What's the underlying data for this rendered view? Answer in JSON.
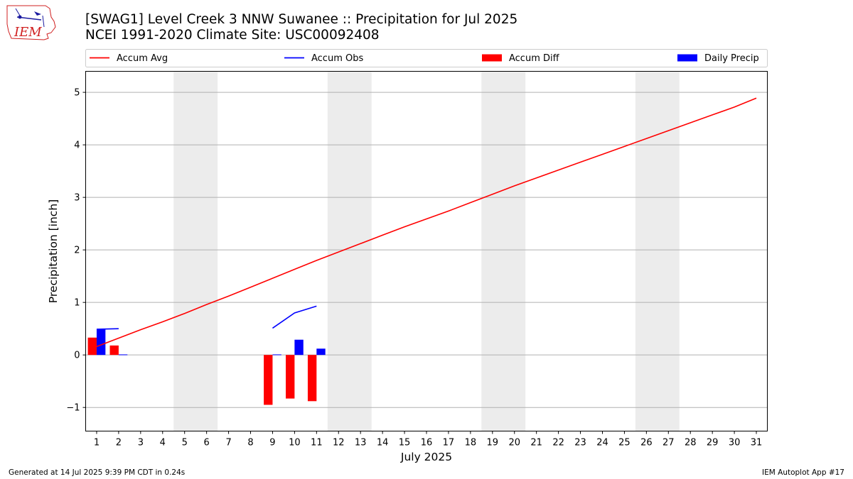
{
  "title_line1": "[SWAG1] Level Creek 3 NNW Suwanee :: Precipitation for Jul 2025",
  "title_line2": "NCEI 1991-2020 Climate Site: USC00092408",
  "footer_left": "Generated at 14 Jul 2025 9:39 PM CDT in 0.24s",
  "footer_right": "IEM Autoplot App #17",
  "logo_text": "IEM",
  "colors": {
    "accum_avg": "#ff0000",
    "accum_obs": "#0000ff",
    "accum_diff": "#ff0000",
    "daily_precip": "#0000ff",
    "weekend_shade": "#ececec",
    "grid": "#b0b0b0"
  },
  "chart_data": {
    "type": "bar",
    "xlabel": "July 2025",
    "ylabel": "Precipitation [inch]",
    "xlim": [
      0.5,
      31.5
    ],
    "ylim": [
      -1.45,
      5.4
    ],
    "yticks": [
      -1,
      0,
      1,
      2,
      3,
      4,
      5
    ],
    "ytick_labels": [
      "−1",
      "0",
      "1",
      "2",
      "3",
      "4",
      "5"
    ],
    "xticks": [
      1,
      2,
      3,
      4,
      5,
      6,
      7,
      8,
      9,
      10,
      11,
      12,
      13,
      14,
      15,
      16,
      17,
      18,
      19,
      20,
      21,
      22,
      23,
      24,
      25,
      26,
      27,
      28,
      29,
      30,
      31
    ],
    "grid": "horizontal",
    "legend_placement": "top, above plot",
    "weekend_spans": [
      [
        4.5,
        6.5
      ],
      [
        11.5,
        13.5
      ],
      [
        18.5,
        20.5
      ],
      [
        25.5,
        27.5
      ]
    ],
    "series": [
      {
        "name": "Accum Avg",
        "kind": "line",
        "x": [
          1,
          2,
          3,
          4,
          5,
          6,
          7,
          8,
          9,
          10,
          11,
          12,
          13,
          14,
          15,
          16,
          17,
          18,
          19,
          20,
          21,
          22,
          23,
          24,
          25,
          26,
          27,
          28,
          29,
          30,
          31
        ],
        "values": [
          0.16,
          0.32,
          0.48,
          0.63,
          0.79,
          0.96,
          1.12,
          1.29,
          1.46,
          1.63,
          1.8,
          1.96,
          2.12,
          2.28,
          2.44,
          2.59,
          2.74,
          2.9,
          3.06,
          3.22,
          3.37,
          3.52,
          3.67,
          3.82,
          3.97,
          4.12,
          4.27,
          4.42,
          4.57,
          4.72,
          4.89
        ]
      },
      {
        "name": "Accum Obs",
        "kind": "line",
        "segments": [
          {
            "x": [
              1,
              2
            ],
            "values": [
              0.49,
              0.5
            ]
          },
          {
            "x": [
              9,
              10,
              11
            ],
            "values": [
              0.51,
              0.8,
              0.93
            ]
          }
        ]
      },
      {
        "name": "Accum Diff",
        "kind": "bar",
        "x": [
          1,
          2,
          9,
          10,
          11
        ],
        "values": [
          0.33,
          0.18,
          -0.95,
          -0.83,
          -0.88
        ]
      },
      {
        "name": "Daily Precip",
        "kind": "bar",
        "x": [
          1,
          2,
          9,
          10,
          11
        ],
        "values": [
          0.49,
          0.01,
          0.01,
          0.29,
          0.12
        ]
      }
    ]
  }
}
